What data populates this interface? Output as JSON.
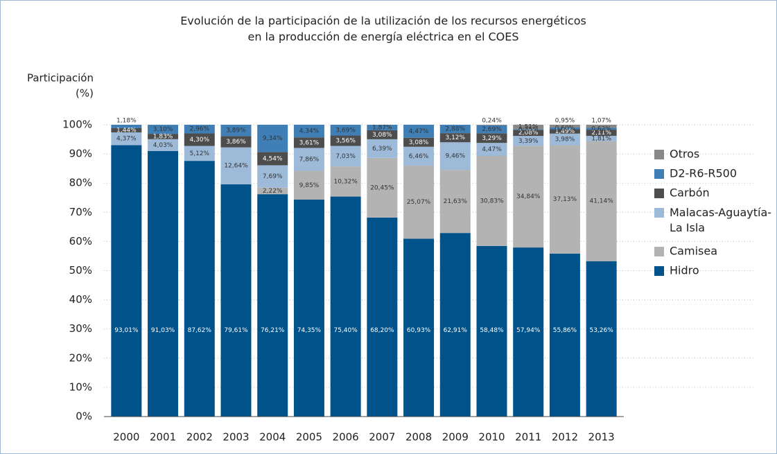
{
  "chart_data": {
    "type": "stacked_bar",
    "title": [
      "Evolución de la participación de la utilización de los recursos energéticos",
      "en la producción de energía eléctrica en el COES"
    ],
    "ylabel": [
      "Participación",
      "(%)"
    ],
    "categories": [
      "2000",
      "2001",
      "2002",
      "2003",
      "2004",
      "2005",
      "2006",
      "2007",
      "2008",
      "2009",
      "2010",
      "2011",
      "2012",
      "2013"
    ],
    "series": [
      {
        "name": "Hidro",
        "color": "#00538a",
        "values": [
          93.01,
          91.03,
          87.62,
          79.61,
          76.21,
          74.35,
          75.4,
          68.2,
          60.93,
          62.91,
          58.48,
          57.94,
          55.86,
          53.26
        ],
        "value_labels": [
          "93,01%",
          "91,03%",
          "87,62%",
          "79,61%",
          "76,21%",
          "74,35%",
          "75,40%",
          "68,20%",
          "60,93%",
          "62,91%",
          "58,48%",
          "57,94%",
          "55,86%",
          "53,26%"
        ]
      },
      {
        "name": "Camisea",
        "color": "#b3b3b3",
        "values": [
          null,
          null,
          null,
          null,
          2.22,
          9.85,
          10.32,
          20.45,
          25.07,
          21.63,
          30.83,
          34.84,
          37.13,
          41.14
        ],
        "value_labels": [
          null,
          null,
          null,
          null,
          "2,22%",
          "9,85%",
          "10,32%",
          "20,45%",
          "25,07%",
          "21,63%",
          "30,83%",
          "34,84%",
          "37,13%",
          "41,14%"
        ]
      },
      {
        "name": "Malacas-Aguaytía-La Isla",
        "color": "#9dbbd9",
        "values": [
          4.37,
          4.03,
          5.12,
          12.64,
          7.69,
          7.86,
          7.03,
          6.39,
          6.46,
          9.46,
          4.47,
          3.39,
          3.98,
          1.81
        ],
        "value_labels": [
          "4,37%",
          "4,03%",
          "5,12%",
          "12,64%",
          "7,69%",
          "7,86%",
          "7,03%",
          "6,39%",
          "6,46%",
          "9,46%",
          "4,47%",
          "3,39%",
          "3,98%",
          "1,81%"
        ]
      },
      {
        "name": "Carbón",
        "color": "#4d4d4d",
        "values": [
          1.44,
          1.83,
          4.3,
          3.86,
          4.54,
          3.61,
          3.56,
          3.08,
          3.08,
          3.12,
          3.29,
          2.08,
          1.49,
          2.11
        ],
        "value_labels": [
          "1,44%",
          "1,83%",
          "4,30%",
          "3,86%",
          "4,54%",
          "3,61%",
          "3,56%",
          "3,08%",
          "3,08%",
          "3,12%",
          "3,29%",
          "2,08%",
          "1,49%",
          "2,11%"
        ]
      },
      {
        "name": "D2-R6-R500",
        "color": "#3f7fb5",
        "values": [
          1.18,
          3.1,
          2.96,
          3.89,
          9.34,
          4.34,
          3.69,
          1.87,
          4.47,
          2.88,
          2.69,
          0.25,
          0.6,
          0.62
        ],
        "value_labels": [
          "1,18%",
          "3,10%",
          "2,96%",
          "3,89%",
          "9,34%",
          "4,34%",
          "3,69%",
          "1,87%",
          "4,47%",
          "2,88%",
          "2,69%",
          "0,25%",
          "0,60%",
          "0,62%"
        ]
      },
      {
        "name": "Otros",
        "color": "#888888",
        "values": [
          null,
          null,
          null,
          null,
          null,
          null,
          null,
          null,
          null,
          null,
          0.24,
          1.51,
          0.95,
          1.07
        ],
        "value_labels": [
          null,
          null,
          null,
          null,
          null,
          null,
          null,
          null,
          null,
          null,
          "0,24%",
          "1,51%",
          "0,95%",
          "1,07%"
        ]
      }
    ],
    "ylim": [
      0,
      100
    ],
    "yticks": [
      {
        "value": 0,
        "label": "0%"
      },
      {
        "value": 10,
        "label": "10%"
      },
      {
        "value": 20,
        "label": "20%"
      },
      {
        "value": 30,
        "label": "30%"
      },
      {
        "value": 40,
        "label": "40%"
      },
      {
        "value": 50,
        "label": "50%"
      },
      {
        "value": 60,
        "label": "60%"
      },
      {
        "value": 70,
        "label": "70%"
      },
      {
        "value": 80,
        "label": "80%"
      },
      {
        "value": 90,
        "label": "90%"
      },
      {
        "value": 100,
        "label": "100%"
      }
    ],
    "grid": true,
    "legend": "right"
  }
}
